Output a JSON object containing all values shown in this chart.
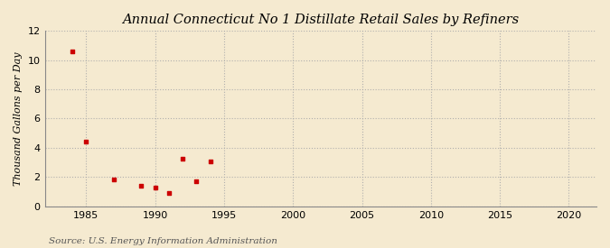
{
  "title": "Annual Connecticut No 1 Distillate Retail Sales by Refiners",
  "ylabel": "Thousand Gallons per Day",
  "source": "Source: U.S. Energy Information Administration",
  "background_color": "#f5ead0",
  "plot_background_color": "#f5ead0",
  "marker_color": "#cc0000",
  "marker": "s",
  "marker_size": 3.5,
  "x_data": [
    1984,
    1985,
    1987,
    1989,
    1990,
    1991,
    1992,
    1993,
    1994
  ],
  "y_data": [
    10.6,
    4.4,
    1.8,
    1.4,
    1.3,
    0.9,
    3.25,
    1.7,
    3.05
  ],
  "xlim": [
    1982,
    2022
  ],
  "ylim": [
    0,
    12
  ],
  "xticks": [
    1985,
    1990,
    1995,
    2000,
    2005,
    2010,
    2015,
    2020
  ],
  "yticks": [
    0,
    2,
    4,
    6,
    8,
    10,
    12
  ],
  "title_fontsize": 10.5,
  "label_fontsize": 8,
  "tick_fontsize": 8,
  "source_fontsize": 7.5,
  "grid_color": "#aaaaaa",
  "grid_style": ":",
  "grid_alpha": 0.9
}
